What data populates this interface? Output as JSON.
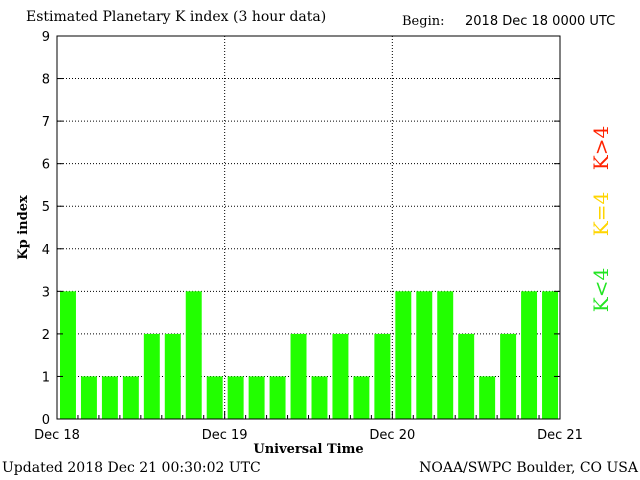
{
  "header": {
    "title": "Estimated Planetary K index (3 hour data)",
    "begin_label": "Begin:",
    "begin_value": "2018 Dec 18 0000 UTC"
  },
  "footer": {
    "updated": "Updated 2018 Dec 21 00:30:02 UTC",
    "source": "NOAA/SWPC Boulder, CO USA"
  },
  "legend": {
    "items": [
      {
        "label": "K>4",
        "color": "#ff2200"
      },
      {
        "label": "K=4",
        "color": "#ffd500"
      },
      {
        "label": "K<4",
        "color": "#22e522"
      }
    ]
  },
  "chart_data": {
    "type": "bar",
    "title": "Estimated Planetary K index (3 hour data)",
    "xlabel": "Universal Time",
    "ylabel": "Kp index",
    "ylim": [
      0,
      9
    ],
    "yticks": [
      "0",
      "1",
      "2",
      "3",
      "4",
      "5",
      "6",
      "7",
      "8",
      "9"
    ],
    "x_tick_labels": [
      "Dec 18",
      "Dec 19",
      "Dec 20",
      "Dec 21"
    ],
    "grid": true,
    "bar_color": "#22ff00",
    "values": [
      3,
      1,
      1,
      1,
      2,
      2,
      3,
      1,
      1,
      1,
      1,
      2,
      1,
      2,
      1,
      2,
      3,
      3,
      3,
      2,
      1,
      2,
      3,
      3
    ]
  }
}
